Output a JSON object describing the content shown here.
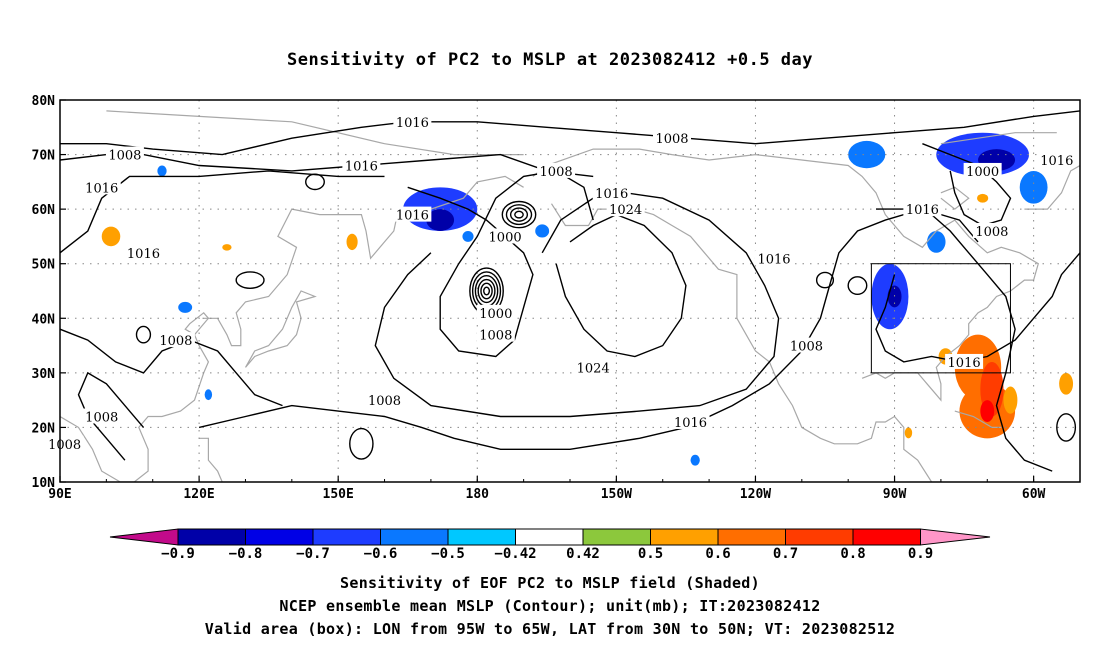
{
  "title": "Sensitivity of PC2 to MSLP at 2023082412 +0.5 day",
  "map": {
    "lon_range": [
      90,
      310
    ],
    "lat_range": [
      10,
      80
    ],
    "x_ticks": [
      {
        "lon": 90,
        "label": "90E"
      },
      {
        "lon": 120,
        "label": "120E"
      },
      {
        "lon": 150,
        "label": "150E"
      },
      {
        "lon": 180,
        "label": "180"
      },
      {
        "lon": 210,
        "label": "150W"
      },
      {
        "lon": 240,
        "label": "120W"
      },
      {
        "lon": 270,
        "label": "90W"
      },
      {
        "lon": 300,
        "label": "60W"
      }
    ],
    "y_ticks": [
      {
        "lat": 80,
        "label": "80N"
      },
      {
        "lat": 70,
        "label": "70N"
      },
      {
        "lat": 60,
        "label": "60N"
      },
      {
        "lat": 50,
        "label": "50N"
      },
      {
        "lat": 40,
        "label": "40N"
      },
      {
        "lat": 30,
        "label": "30N"
      },
      {
        "lat": 20,
        "label": "20N"
      },
      {
        "lat": 10,
        "label": "10N"
      }
    ],
    "valid_box": {
      "lon_min": 265,
      "lon_max": 295,
      "lat_min": 30,
      "lat_max": 50
    },
    "contour_labels": [
      {
        "lon": 166,
        "lat": 76,
        "text": "1016"
      },
      {
        "lon": 222,
        "lat": 73,
        "text": "1008"
      },
      {
        "lon": 104,
        "lat": 70,
        "text": "1008"
      },
      {
        "lon": 155,
        "lat": 68,
        "text": "1016"
      },
      {
        "lon": 197,
        "lat": 67,
        "text": "1008"
      },
      {
        "lon": 289,
        "lat": 67,
        "text": "1000"
      },
      {
        "lon": 305,
        "lat": 69,
        "text": "1016"
      },
      {
        "lon": 99,
        "lat": 64,
        "text": "1016"
      },
      {
        "lon": 209,
        "lat": 63,
        "text": "1016"
      },
      {
        "lon": 212,
        "lat": 60,
        "text": "1024"
      },
      {
        "lon": 166,
        "lat": 59,
        "text": "1016"
      },
      {
        "lon": 276,
        "lat": 60,
        "text": "1016"
      },
      {
        "lon": 186,
        "lat": 55,
        "text": "1000"
      },
      {
        "lon": 291,
        "lat": 56,
        "text": "1008"
      },
      {
        "lon": 108,
        "lat": 52,
        "text": "1016"
      },
      {
        "lon": 244,
        "lat": 51,
        "text": "1016"
      },
      {
        "lon": 184,
        "lat": 41,
        "text": "1000"
      },
      {
        "lon": 184,
        "lat": 37,
        "text": "1008"
      },
      {
        "lon": 115,
        "lat": 36,
        "text": "1008"
      },
      {
        "lon": 251,
        "lat": 35,
        "text": "1008"
      },
      {
        "lon": 285,
        "lat": 32,
        "text": "1016"
      },
      {
        "lon": 205,
        "lat": 31,
        "text": "1024"
      },
      {
        "lon": 160,
        "lat": 25,
        "text": "1008"
      },
      {
        "lon": 99,
        "lat": 22,
        "text": "1008"
      },
      {
        "lon": 226,
        "lat": 21,
        "text": "1016"
      },
      {
        "lon": 91,
        "lat": 17,
        "text": "1008"
      }
    ],
    "shaded": [
      {
        "lon": 172,
        "lat": 60,
        "rx": 8,
        "ry": 4,
        "level": -0.6
      },
      {
        "lon": 172,
        "lat": 58,
        "rx": 3,
        "ry": 2,
        "level": -0.8
      },
      {
        "lon": 269,
        "lat": 44,
        "rx": 4,
        "ry": 6,
        "level": -0.6
      },
      {
        "lon": 270,
        "lat": 44,
        "rx": 1.5,
        "ry": 2,
        "level": -0.8
      },
      {
        "lon": 289,
        "lat": 70,
        "rx": 10,
        "ry": 4,
        "level": -0.6
      },
      {
        "lon": 292,
        "lat": 69,
        "rx": 4,
        "ry": 2,
        "level": -0.8
      },
      {
        "lon": 264,
        "lat": 70,
        "rx": 4,
        "ry": 2.5,
        "level": -0.5
      },
      {
        "lon": 300,
        "lat": 64,
        "rx": 3,
        "ry": 3,
        "level": -0.5
      },
      {
        "lon": 279,
        "lat": 54,
        "rx": 2,
        "ry": 2,
        "level": -0.5
      },
      {
        "lon": 194,
        "lat": 56,
        "rx": 1.5,
        "ry": 1.2,
        "level": -0.5
      },
      {
        "lon": 178,
        "lat": 55,
        "rx": 1.2,
        "ry": 1,
        "level": -0.5
      },
      {
        "lon": 117,
        "lat": 42,
        "rx": 1.5,
        "ry": 1,
        "level": -0.5
      },
      {
        "lon": 122,
        "lat": 26,
        "rx": 0.8,
        "ry": 1,
        "level": -0.5
      },
      {
        "lon": 227,
        "lat": 14,
        "rx": 1,
        "ry": 1,
        "level": -0.5
      },
      {
        "lon": 112,
        "lat": 67,
        "rx": 1,
        "ry": 1,
        "level": -0.5
      },
      {
        "lon": 288,
        "lat": 31,
        "rx": 5,
        "ry": 6,
        "level": 0.6
      },
      {
        "lon": 290,
        "lat": 23,
        "rx": 6,
        "ry": 5,
        "level": 0.6
      },
      {
        "lon": 291,
        "lat": 27,
        "rx": 2.5,
        "ry": 5,
        "level": 0.7
      },
      {
        "lon": 290,
        "lat": 23,
        "rx": 1.5,
        "ry": 2,
        "level": 0.8
      },
      {
        "lon": 295,
        "lat": 25,
        "rx": 1.5,
        "ry": 2.5,
        "level": 0.5
      },
      {
        "lon": 281,
        "lat": 33,
        "rx": 1.5,
        "ry": 1.5,
        "level": 0.5
      },
      {
        "lon": 101,
        "lat": 55,
        "rx": 2,
        "ry": 1.8,
        "level": 0.5
      },
      {
        "lon": 153,
        "lat": 54,
        "rx": 1.2,
        "ry": 1.5,
        "level": 0.5
      },
      {
        "lon": 126,
        "lat": 53,
        "rx": 1,
        "ry": 0.6,
        "level": 0.5
      },
      {
        "lon": 307,
        "lat": 28,
        "rx": 1.5,
        "ry": 2,
        "level": 0.5
      },
      {
        "lon": 289,
        "lat": 62,
        "rx": 1.2,
        "ry": 0.8,
        "level": 0.5
      },
      {
        "lon": 273,
        "lat": 19,
        "rx": 0.8,
        "ry": 1,
        "level": 0.5
      }
    ]
  },
  "colorbar": {
    "colors": [
      "#c20a8a",
      "#0000a8",
      "#0000e6",
      "#1e3cff",
      "#0a78ff",
      "#00c8ff",
      "#ffffff",
      "#8cc83c",
      "#ffa000",
      "#ff6e00",
      "#ff3c00",
      "#ff0000",
      "#ff96c8"
    ],
    "labels": [
      "-0.9",
      "-0.8",
      "-0.7",
      "-0.6",
      "-0.5",
      "-0.42",
      "0.42",
      "0.5",
      "0.6",
      "0.7",
      "0.8",
      "0.9"
    ]
  },
  "captions": {
    "line1": "Sensitivity of EOF PC2 to MSLP field (Shaded)",
    "line2": "NCEP ensemble mean MSLP (Contour); unit(mb); IT:2023082412",
    "line3": "Valid area (box): LON from 95W to 65W, LAT from 30N to 50N; VT: 2023082512"
  }
}
